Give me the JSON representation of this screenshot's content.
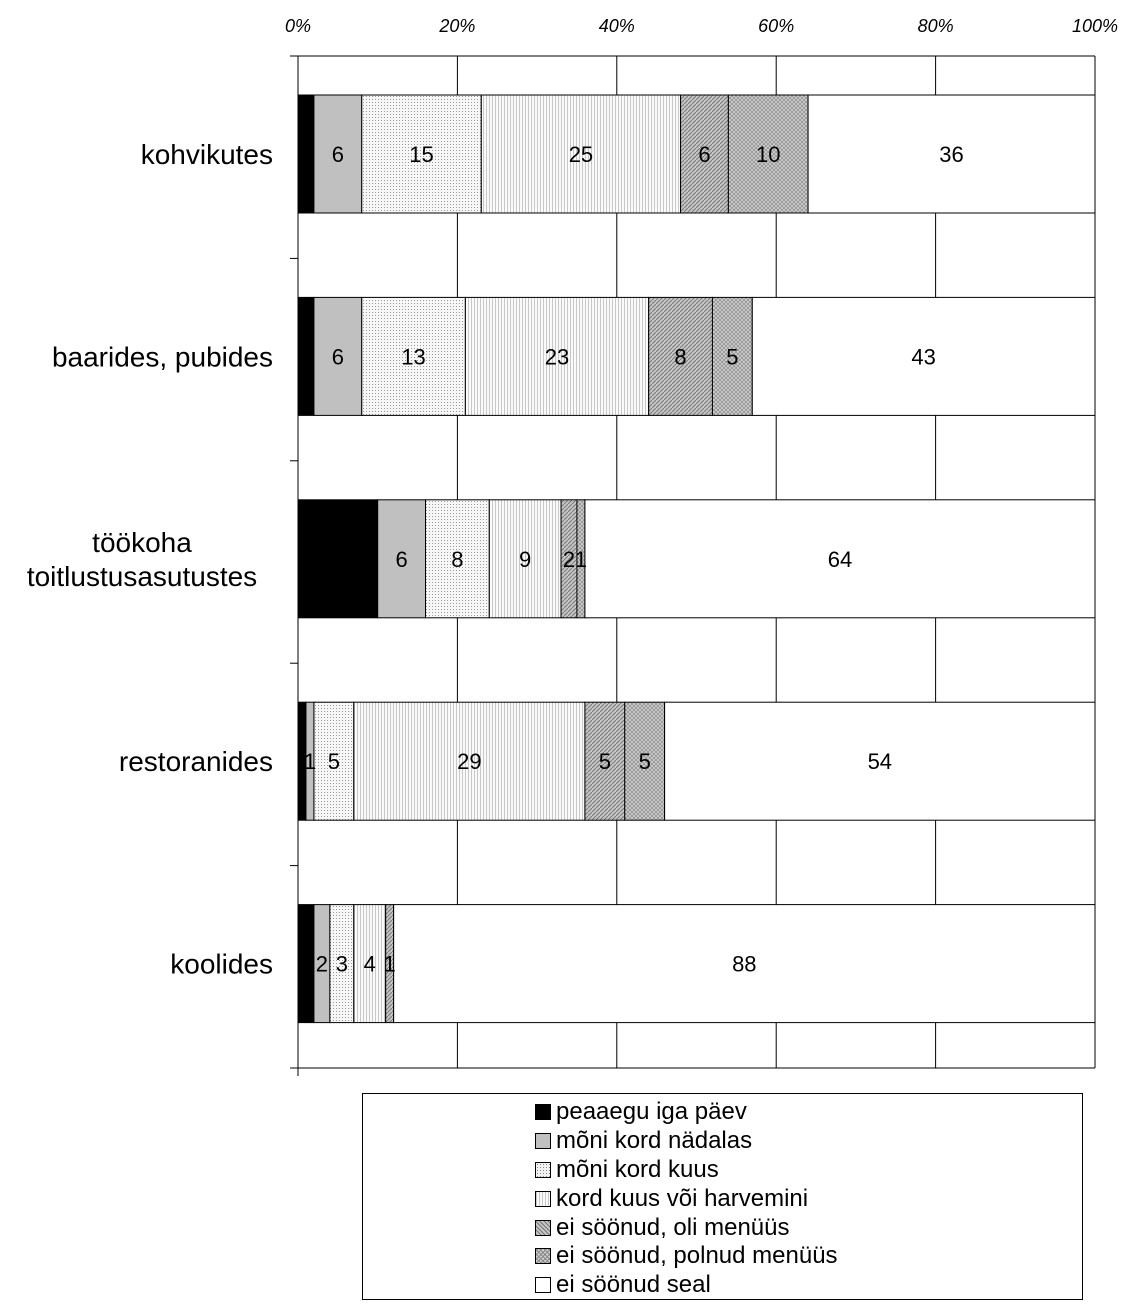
{
  "chart_data": {
    "type": "bar",
    "orientation": "horizontal",
    "stacked": true,
    "title": "",
    "xlabel": "",
    "ylabel": "",
    "xlim": [
      0,
      100
    ],
    "xticks": [
      "0%",
      "20%",
      "40%",
      "60%",
      "80%",
      "100%"
    ],
    "grid": true,
    "legend_position": "bottom",
    "categories": [
      [
        "kohvikutes"
      ],
      [
        "baarides, pubides"
      ],
      [
        "töökoha",
        "toitlustusasutustes"
      ],
      [
        "restoranides"
      ],
      [
        "koolides"
      ]
    ],
    "series": [
      {
        "name": "peaaegu iga päev",
        "fill": "#000000",
        "values": [
          2,
          2,
          10,
          1,
          2
        ]
      },
      {
        "name": "mõni kord nädalas",
        "fill": "#c0c0c0",
        "values": [
          6,
          6,
          6,
          1,
          2
        ]
      },
      {
        "name": "mõni kord kuus",
        "fill": "#e6e6e6",
        "values": [
          15,
          13,
          8,
          5,
          3
        ]
      },
      {
        "name": "kord kuus või harvemini",
        "fill": "#f4f4f4",
        "values": [
          25,
          23,
          9,
          29,
          4
        ]
      },
      {
        "name": "ei söönud, oli menüüs",
        "fill": "#a9a9a9",
        "values": [
          6,
          8,
          2,
          5,
          1
        ]
      },
      {
        "name": "ei söönud, polnud menüüs",
        "fill": "#b4b4b4",
        "values": [
          10,
          5,
          1,
          5,
          0
        ]
      },
      {
        "name": "ei söönud seal",
        "fill": "#ffffff",
        "values": [
          36,
          43,
          64,
          54,
          88
        ]
      }
    ]
  }
}
